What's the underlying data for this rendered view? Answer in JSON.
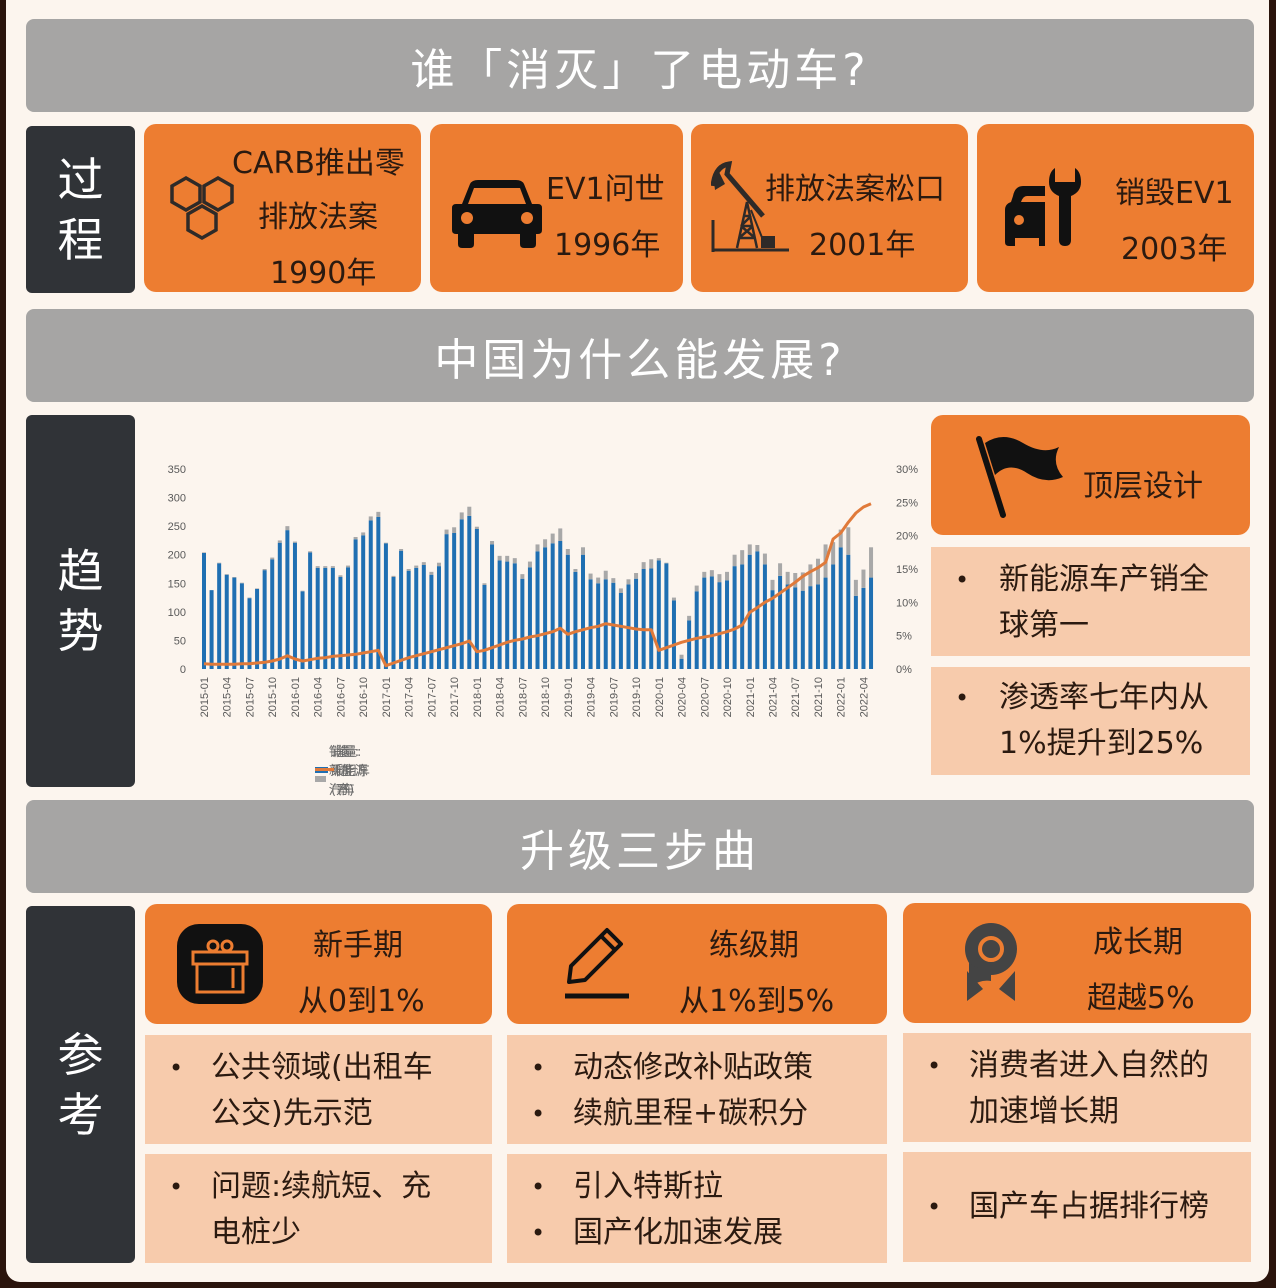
{
  "colors": {
    "accent": "#ed7d31",
    "pale": "#f7cbac",
    "banner": "#a6a5a4",
    "side": "#303337",
    "bg": "#fcf5ee",
    "bar_ice": "#1f6fb2",
    "bar_nev": "#a8a8a8",
    "line": "#e07a3a"
  },
  "section1": {
    "banner": "谁「消灭」了电动车?",
    "side_label": [
      "过",
      "程"
    ],
    "cards": [
      {
        "icon": "hexagons-icon",
        "lines": [
          "CARB推出零",
          "排放法案",
          "1990年"
        ]
      },
      {
        "icon": "car-icon",
        "lines": [
          "EV1问世",
          "1996年"
        ]
      },
      {
        "icon": "oil-pump-icon",
        "lines": [
          "排放法案松口",
          "2001年"
        ]
      },
      {
        "icon": "car-wrench-icon",
        "lines": [
          "销毁EV1",
          "2003年"
        ]
      }
    ]
  },
  "section2": {
    "banner": "中国为什么能发展?",
    "side_label": [
      "趋",
      "势"
    ],
    "top_card": {
      "icon": "flag-icon",
      "title": "顶层设计"
    },
    "points": [
      {
        "lines": [
          "新能源车产销全",
          "球第一"
        ]
      },
      {
        "lines": [
          "渗透率七年内从",
          "1%提升到25%"
        ]
      }
    ]
  },
  "section3": {
    "banner": "升级三步曲",
    "side_label": [
      "参",
      "考"
    ],
    "stages": [
      {
        "icon": "gift-icon",
        "title": "新手期",
        "subtitle": "从0到1%",
        "box1": [
          [
            "公共领域(出租车",
            "公交)先示范"
          ]
        ],
        "box2": [
          [
            "问题:续航短、充",
            "电桩少"
          ]
        ]
      },
      {
        "icon": "pencil-icon",
        "title": "练级期",
        "subtitle": "从1%到5%",
        "box1": [
          [
            "动态修改补贴政策"
          ],
          [
            "续航里程+碳积分"
          ]
        ],
        "box2": [
          [
            "引入特斯拉"
          ],
          [
            "国产化加速发展"
          ]
        ]
      },
      {
        "icon": "medal-icon",
        "title": "成长期",
        "subtitle": "超越5%",
        "box1": [
          [
            "消费者进入自然的",
            "加速增长期"
          ]
        ],
        "box2": [
          [
            "国产车占据排行榜"
          ]
        ]
      }
    ]
  },
  "chart_data": {
    "type": "bar",
    "title": "",
    "xlabel": "",
    "ylabel": "",
    "ylim": [
      0,
      350
    ],
    "y2lim": [
      0,
      30
    ],
    "yticks": [
      "0",
      "50",
      "100",
      "150",
      "200",
      "250",
      "300",
      "350"
    ],
    "y2ticks": [
      "0%",
      "5%",
      "10%",
      "15%",
      "20%",
      "25%",
      "30%"
    ],
    "grid": false,
    "legend_position": "bottom",
    "x_tick_labels": [
      "2015-01",
      "2015-04",
      "2015-07",
      "2015-10",
      "2016-01",
      "2016-04",
      "2016-07",
      "2016-10",
      "2017-01",
      "2017-04",
      "2017-07",
      "2017-10",
      "2018-01",
      "2018-04",
      "2018-07",
      "2018-10",
      "2019-01",
      "2019-04",
      "2019-07",
      "2019-10",
      "2020-01",
      "2020-04",
      "2020-07",
      "2020-10",
      "2021-01",
      "2021-04",
      "2021-07",
      "2021-10",
      "2022-01",
      "2022-04"
    ],
    "x_start": "2015-01",
    "months": 89,
    "series": [
      {
        "name": "销量:乘用车(万)",
        "kind": "bar",
        "color": "#1f6fb2",
        "values": [
          203,
          138,
          185,
          165,
          160,
          150,
          124,
          140,
          173,
          192,
          221,
          243,
          221,
          136,
          204,
          177,
          177,
          177,
          161,
          178,
          227,
          234,
          260,
          266,
          220,
          161,
          207,
          172,
          177,
          182,
          165,
          180,
          236,
          238,
          262,
          268,
          245,
          147,
          218,
          190,
          188,
          185,
          158,
          178,
          206,
          213,
          220,
          224,
          200,
          170,
          200,
          157,
          150,
          157,
          151,
          133,
          148,
          158,
          175,
          176,
          190,
          185,
          120,
          18,
          85,
          136,
          160,
          162,
          152,
          155,
          180,
          183,
          200,
          206,
          183,
          138,
          163,
          148,
          143,
          137,
          145,
          148,
          160,
          183,
          213,
          200,
          128,
          142,
          160
        ],
        "note": "estimated"
      },
      {
        "name": "销量:新能源汽车(万)",
        "kind": "bar-stack",
        "color": "#a8a8a8",
        "values": [
          1,
          0.5,
          1,
          1,
          1,
          1,
          1,
          1,
          2,
          3,
          4,
          7,
          2,
          1,
          2,
          3,
          3,
          3,
          3,
          3,
          4,
          5,
          7,
          9,
          1,
          2,
          3,
          3,
          4,
          5,
          5,
          6,
          8,
          10,
          12,
          16,
          4,
          3,
          6,
          8,
          10,
          9,
          8,
          10,
          12,
          14,
          17,
          22,
          10,
          5,
          13,
          10,
          10,
          15,
          8,
          8,
          9,
          10,
          12,
          16,
          4,
          1,
          5,
          7,
          8,
          10,
          10,
          11,
          14,
          15,
          20,
          25,
          18,
          11,
          19,
          18,
          22,
          22,
          25,
          32,
          38,
          45,
          58,
          39,
          31,
          48,
          28,
          32,
          53
        ],
        "note": "estimated stacked on top"
      },
      {
        "name": "渗透率",
        "kind": "line",
        "color": "#e07a3a",
        "axis": "right",
        "values": [
          0.8,
          0.7,
          0.7,
          0.7,
          0.7,
          0.8,
          0.8,
          0.9,
          1.0,
          1.2,
          1.5,
          2.0,
          1.5,
          1.2,
          1.4,
          1.6,
          1.7,
          1.9,
          2.0,
          2.1,
          2.2,
          2.4,
          2.6,
          2.8,
          0.5,
          0.9,
          1.3,
          1.7,
          2.0,
          2.3,
          2.6,
          2.9,
          3.2,
          3.5,
          3.8,
          4.2,
          2.6,
          2.8,
          3.2,
          3.6,
          4.0,
          4.3,
          4.5,
          4.8,
          5.0,
          5.3,
          5.6,
          6.1,
          5.2,
          5.6,
          5.9,
          6.2,
          6.4,
          6.8,
          6.6,
          6.4,
          6.2,
          6.0,
          5.9,
          5.9,
          2.8,
          3.2,
          3.6,
          4.0,
          4.3,
          4.6,
          4.8,
          5.0,
          5.3,
          5.6,
          6.0,
          6.6,
          8.5,
          9.2,
          10.0,
          10.6,
          11.4,
          12.2,
          13.0,
          13.9,
          14.6,
          15.2,
          16.0,
          19.5,
          20.4,
          22.0,
          23.4,
          24.3,
          24.8
        ],
        "note": "estimated, percent"
      }
    ]
  }
}
